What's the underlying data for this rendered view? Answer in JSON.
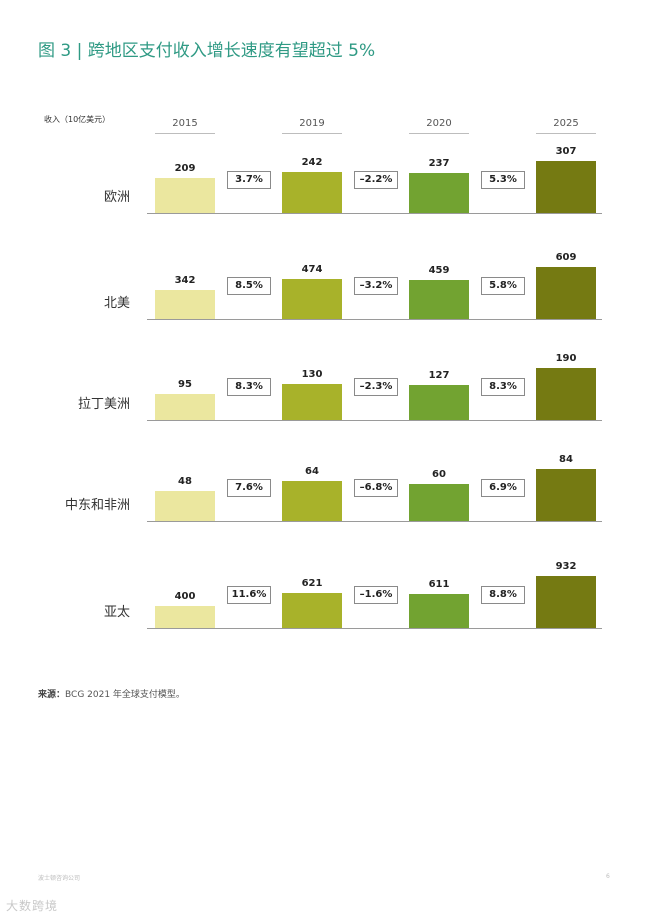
{
  "title": "图 3 | 跨地区支付收入增长速度有望超过 5%",
  "unit_label": "收入（10亿美元）",
  "source": {
    "label": "来源：",
    "text": "BCG 2021 年全球支付模型。"
  },
  "footer": {
    "left": "波士顿咨询公司",
    "page": "6"
  },
  "watermark": "大数跨境",
  "colors": {
    "2015": "#ebe79f",
    "2019": "#a8b22a",
    "2020": "#72a331",
    "2025": "#757a12",
    "title": "#2f9a84"
  },
  "chart_data": {
    "type": "bar",
    "title": "图 3 | 跨地区支付收入增长速度有望超过 5%",
    "ylabel": "收入（10亿美元）",
    "categories": [
      "2015",
      "2019",
      "2020",
      "2025"
    ],
    "groups": [
      {
        "region": "欧洲",
        "values": [
          209,
          242,
          237,
          307
        ],
        "growth": [
          "3.7%",
          "–2.2%",
          "5.3%"
        ]
      },
      {
        "region": "北美",
        "values": [
          342,
          474,
          459,
          609
        ],
        "growth": [
          "8.5%",
          "–3.2%",
          "5.8%"
        ]
      },
      {
        "region": "拉丁美洲",
        "values": [
          95,
          130,
          127,
          190
        ],
        "growth": [
          "8.3%",
          "–2.3%",
          "8.3%"
        ]
      },
      {
        "region": "中东和非洲",
        "values": [
          48,
          64,
          60,
          84
        ],
        "growth": [
          "7.6%",
          "–6.8%",
          "6.9%"
        ]
      },
      {
        "region": "亚太",
        "values": [
          400,
          621,
          611,
          932
        ],
        "growth": [
          "11.6%",
          "–1.6%",
          "8.8%"
        ]
      }
    ]
  }
}
